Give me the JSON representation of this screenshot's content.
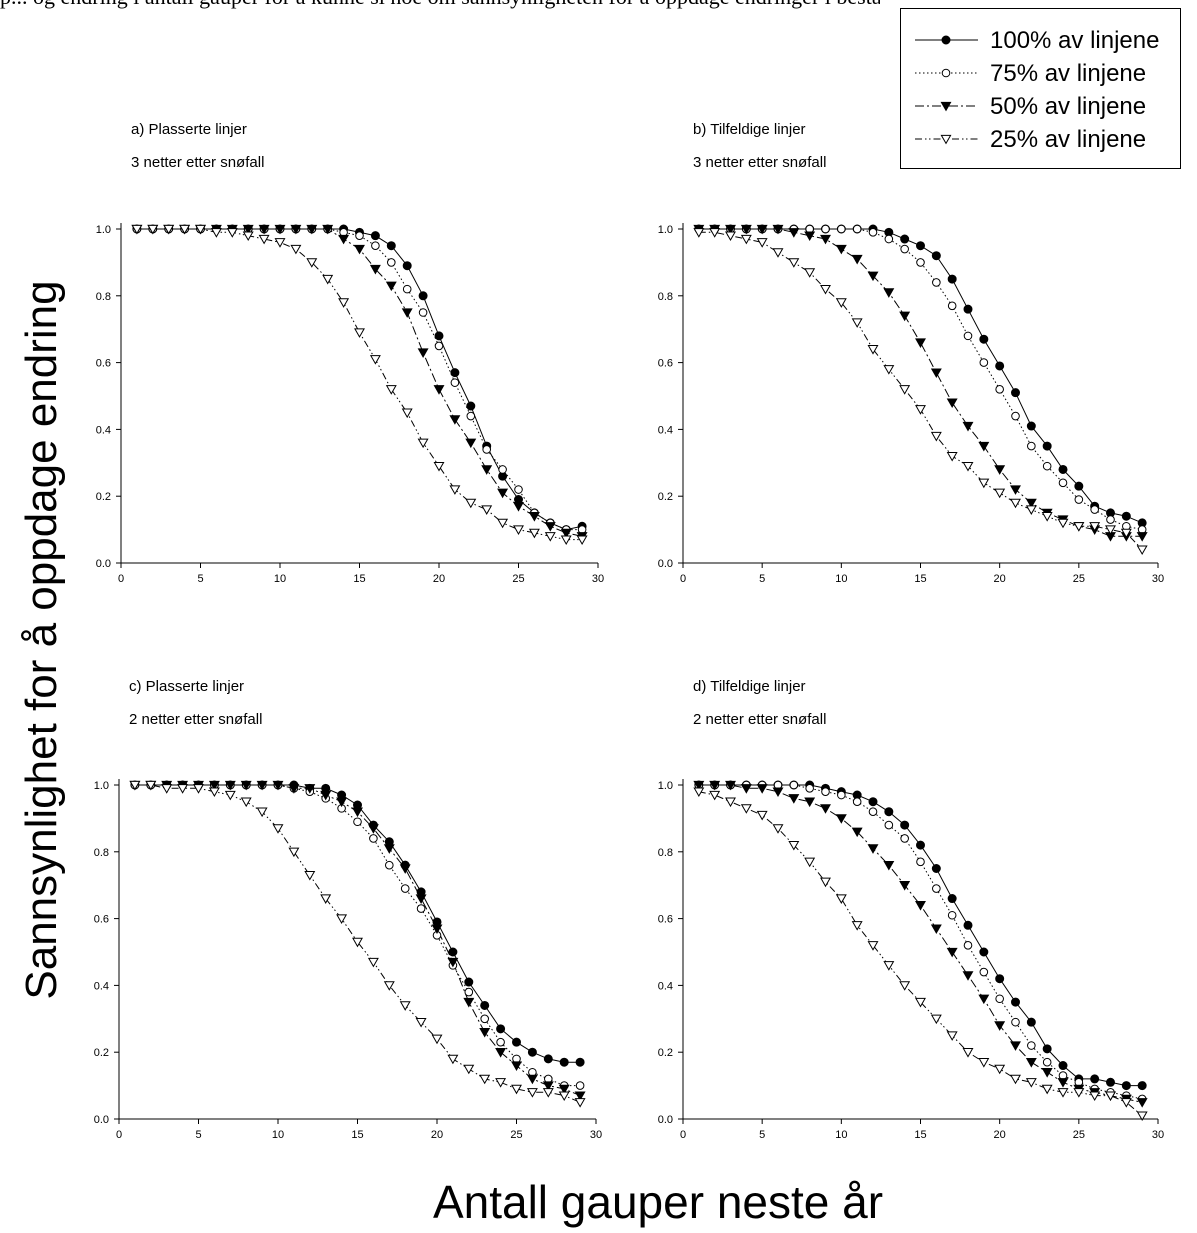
{
  "top_text": "p... og endring i antall gauper for å kunne si noe om sannsynligheten for å oppdage endringer i bestanden",
  "colors": {
    "ink": "#000000",
    "open_fill": "#ffffff"
  },
  "chart_data": [
    {
      "type": "line",
      "panel_title": "a) Plasserte linjer",
      "panel_subtitle": "3 netter etter snøfall",
      "xlim": [
        0,
        30
      ],
      "ylim": [
        0.0,
        1.0
      ],
      "xticks": [
        "0",
        "5",
        "10",
        "15",
        "20",
        "25",
        "30"
      ],
      "yticks": [
        "0.0",
        "0.2",
        "0.4",
        "0.6",
        "0.8",
        "1.0"
      ],
      "x": [
        1,
        2,
        3,
        4,
        5,
        6,
        7,
        8,
        9,
        10,
        11,
        12,
        13,
        14,
        15,
        16,
        17,
        18,
        19,
        20,
        21,
        22,
        23,
        24,
        25,
        26,
        27,
        28,
        29
      ],
      "series": [
        {
          "name": "100% av linjene",
          "values": [
            1.0,
            1.0,
            1.0,
            1.0,
            1.0,
            1.0,
            1.0,
            1.0,
            1.0,
            1.0,
            1.0,
            1.0,
            1.0,
            1.0,
            0.99,
            0.98,
            0.95,
            0.89,
            0.8,
            0.68,
            0.57,
            0.47,
            0.35,
            0.26,
            0.19,
            0.15,
            0.12,
            0.1,
            0.11
          ]
        },
        {
          "name": "75% av linjene",
          "values": [
            1.0,
            1.0,
            1.0,
            1.0,
            1.0,
            1.0,
            1.0,
            1.0,
            1.0,
            1.0,
            1.0,
            1.0,
            1.0,
            0.99,
            0.98,
            0.95,
            0.9,
            0.82,
            0.75,
            0.65,
            0.54,
            0.44,
            0.34,
            0.28,
            0.22,
            0.15,
            0.12,
            0.1,
            0.1
          ]
        },
        {
          "name": "50% av linjene",
          "values": [
            1.0,
            1.0,
            1.0,
            1.0,
            1.0,
            1.0,
            1.0,
            1.0,
            1.0,
            1.0,
            1.0,
            1.0,
            1.0,
            0.97,
            0.94,
            0.88,
            0.83,
            0.75,
            0.63,
            0.52,
            0.43,
            0.36,
            0.28,
            0.21,
            0.17,
            0.14,
            0.11,
            0.09,
            0.08
          ]
        },
        {
          "name": "25% av linjene",
          "values": [
            1.0,
            1.0,
            1.0,
            1.0,
            1.0,
            0.99,
            0.99,
            0.98,
            0.97,
            0.96,
            0.94,
            0.9,
            0.85,
            0.78,
            0.69,
            0.61,
            0.52,
            0.45,
            0.36,
            0.29,
            0.22,
            0.18,
            0.16,
            0.12,
            0.1,
            0.09,
            0.08,
            0.07,
            0.07
          ]
        }
      ]
    },
    {
      "type": "line",
      "panel_title": "b) Tilfeldige linjer",
      "panel_subtitle": "3 netter etter snøfall",
      "xlim": [
        0,
        30
      ],
      "ylim": [
        0.0,
        1.0
      ],
      "xticks": [
        "0",
        "5",
        "10",
        "15",
        "20",
        "25",
        "30"
      ],
      "yticks": [
        "0.0",
        "0.2",
        "0.4",
        "0.6",
        "0.8",
        "1.0"
      ],
      "x": [
        1,
        2,
        3,
        4,
        5,
        6,
        7,
        8,
        9,
        10,
        11,
        12,
        13,
        14,
        15,
        16,
        17,
        18,
        19,
        20,
        21,
        22,
        23,
        24,
        25,
        26,
        27,
        28,
        29
      ],
      "series": [
        {
          "name": "100% av linjene",
          "values": [
            1.0,
            1.0,
            1.0,
            1.0,
            1.0,
            1.0,
            1.0,
            1.0,
            1.0,
            1.0,
            1.0,
            1.0,
            0.99,
            0.97,
            0.95,
            0.92,
            0.85,
            0.76,
            0.67,
            0.59,
            0.51,
            0.41,
            0.35,
            0.28,
            0.23,
            0.17,
            0.15,
            0.14,
            0.12
          ]
        },
        {
          "name": "75% av linjene",
          "values": [
            1.0,
            1.0,
            1.0,
            1.0,
            1.0,
            1.0,
            1.0,
            1.0,
            1.0,
            1.0,
            1.0,
            0.99,
            0.97,
            0.94,
            0.9,
            0.84,
            0.77,
            0.68,
            0.6,
            0.52,
            0.44,
            0.35,
            0.29,
            0.24,
            0.19,
            0.16,
            0.13,
            0.11,
            0.1
          ]
        },
        {
          "name": "50% av linjene",
          "values": [
            1.0,
            1.0,
            1.0,
            1.0,
            1.0,
            1.0,
            0.99,
            0.98,
            0.97,
            0.94,
            0.91,
            0.86,
            0.81,
            0.74,
            0.66,
            0.57,
            0.48,
            0.41,
            0.35,
            0.28,
            0.22,
            0.18,
            0.15,
            0.13,
            0.11,
            0.1,
            0.08,
            0.08,
            0.08
          ]
        },
        {
          "name": "25% av linjene",
          "values": [
            0.99,
            0.99,
            0.98,
            0.97,
            0.96,
            0.93,
            0.9,
            0.87,
            0.82,
            0.78,
            0.72,
            0.64,
            0.58,
            0.52,
            0.46,
            0.38,
            0.32,
            0.29,
            0.24,
            0.21,
            0.18,
            0.16,
            0.14,
            0.12,
            0.11,
            0.11,
            0.1,
            0.09,
            0.04
          ]
        }
      ]
    },
    {
      "type": "line",
      "panel_title": "c) Plasserte linjer",
      "panel_subtitle": "2 netter etter snøfall",
      "xlim": [
        0,
        30
      ],
      "ylim": [
        0.0,
        1.0
      ],
      "xticks": [
        "0",
        "5",
        "10",
        "15",
        "20",
        "25",
        "30"
      ],
      "yticks": [
        "0.0",
        "0.2",
        "0.4",
        "0.6",
        "0.8",
        "1.0"
      ],
      "x": [
        1,
        2,
        3,
        4,
        5,
        6,
        7,
        8,
        9,
        10,
        11,
        12,
        13,
        14,
        15,
        16,
        17,
        18,
        19,
        20,
        21,
        22,
        23,
        24,
        25,
        26,
        27,
        28,
        29
      ],
      "series": [
        {
          "name": "100% av linjene",
          "values": [
            1.0,
            1.0,
            1.0,
            1.0,
            1.0,
            1.0,
            1.0,
            1.0,
            1.0,
            1.0,
            1.0,
            0.99,
            0.99,
            0.97,
            0.94,
            0.88,
            0.83,
            0.76,
            0.68,
            0.59,
            0.5,
            0.41,
            0.34,
            0.27,
            0.23,
            0.2,
            0.18,
            0.17,
            0.17
          ]
        },
        {
          "name": "75% av linjene",
          "values": [
            1.0,
            1.0,
            1.0,
            1.0,
            1.0,
            1.0,
            1.0,
            1.0,
            1.0,
            1.0,
            0.99,
            0.98,
            0.96,
            0.93,
            0.89,
            0.84,
            0.76,
            0.69,
            0.63,
            0.55,
            0.46,
            0.38,
            0.3,
            0.23,
            0.18,
            0.14,
            0.12,
            0.1,
            0.1
          ]
        },
        {
          "name": "50% av linjene",
          "values": [
            1.0,
            1.0,
            1.0,
            1.0,
            1.0,
            1.0,
            1.0,
            1.0,
            1.0,
            1.0,
            0.99,
            0.99,
            0.97,
            0.95,
            0.92,
            0.87,
            0.81,
            0.75,
            0.66,
            0.57,
            0.47,
            0.35,
            0.26,
            0.2,
            0.16,
            0.12,
            0.1,
            0.09,
            0.07
          ]
        },
        {
          "name": "25% av linjene",
          "values": [
            1.0,
            1.0,
            0.99,
            0.99,
            0.99,
            0.98,
            0.97,
            0.95,
            0.92,
            0.87,
            0.8,
            0.73,
            0.66,
            0.6,
            0.53,
            0.47,
            0.4,
            0.34,
            0.29,
            0.24,
            0.18,
            0.15,
            0.12,
            0.11,
            0.09,
            0.08,
            0.08,
            0.07,
            0.05
          ]
        }
      ]
    },
    {
      "type": "line",
      "panel_title": "d) Tilfeldige linjer",
      "panel_subtitle": "2 netter etter snøfall",
      "xlim": [
        0,
        30
      ],
      "ylim": [
        0.0,
        1.0
      ],
      "xticks": [
        "0",
        "5",
        "10",
        "15",
        "20",
        "25",
        "30"
      ],
      "yticks": [
        "0.0",
        "0.2",
        "0.4",
        "0.6",
        "0.8",
        "1.0"
      ],
      "x": [
        1,
        2,
        3,
        4,
        5,
        6,
        7,
        8,
        9,
        10,
        11,
        12,
        13,
        14,
        15,
        16,
        17,
        18,
        19,
        20,
        21,
        22,
        23,
        24,
        25,
        26,
        27,
        28,
        29
      ],
      "series": [
        {
          "name": "100% av linjene",
          "values": [
            1.0,
            1.0,
            1.0,
            1.0,
            1.0,
            1.0,
            1.0,
            1.0,
            0.99,
            0.98,
            0.97,
            0.95,
            0.92,
            0.88,
            0.82,
            0.75,
            0.66,
            0.58,
            0.5,
            0.42,
            0.35,
            0.29,
            0.21,
            0.16,
            0.12,
            0.12,
            0.11,
            0.1,
            0.1
          ]
        },
        {
          "name": "75% av linjene",
          "values": [
            1.0,
            1.0,
            1.0,
            1.0,
            1.0,
            1.0,
            1.0,
            0.99,
            0.98,
            0.97,
            0.95,
            0.92,
            0.88,
            0.84,
            0.77,
            0.69,
            0.61,
            0.52,
            0.44,
            0.36,
            0.29,
            0.22,
            0.17,
            0.13,
            0.11,
            0.09,
            0.08,
            0.07,
            0.06
          ]
        },
        {
          "name": "50% av linjene",
          "values": [
            1.0,
            1.0,
            1.0,
            0.99,
            0.99,
            0.98,
            0.96,
            0.95,
            0.93,
            0.9,
            0.86,
            0.81,
            0.76,
            0.7,
            0.64,
            0.57,
            0.5,
            0.43,
            0.36,
            0.28,
            0.22,
            0.17,
            0.14,
            0.11,
            0.09,
            0.08,
            0.07,
            0.06,
            0.05
          ]
        },
        {
          "name": "25% av linjene",
          "values": [
            0.98,
            0.97,
            0.95,
            0.93,
            0.91,
            0.87,
            0.82,
            0.77,
            0.71,
            0.66,
            0.58,
            0.52,
            0.46,
            0.4,
            0.35,
            0.3,
            0.25,
            0.2,
            0.17,
            0.15,
            0.12,
            0.11,
            0.09,
            0.08,
            0.08,
            0.07,
            0.07,
            0.05,
            0.01
          ]
        }
      ]
    }
  ],
  "legend": [
    {
      "label": "100% av linjene",
      "marker": "filled-circle",
      "dash": "solid"
    },
    {
      "label": "75% av linjene",
      "marker": "open-circle",
      "dash": "dotted"
    },
    {
      "label": "50% av linjene",
      "marker": "filled-triangle-down",
      "dash": "dashdot"
    },
    {
      "label": "25% av linjene",
      "marker": "open-triangle-down",
      "dash": "dashdotdot"
    }
  ],
  "y_axis_label": "Sannsynlighet for å oppdage endring",
  "x_axis_label": "Antall gauper neste år"
}
